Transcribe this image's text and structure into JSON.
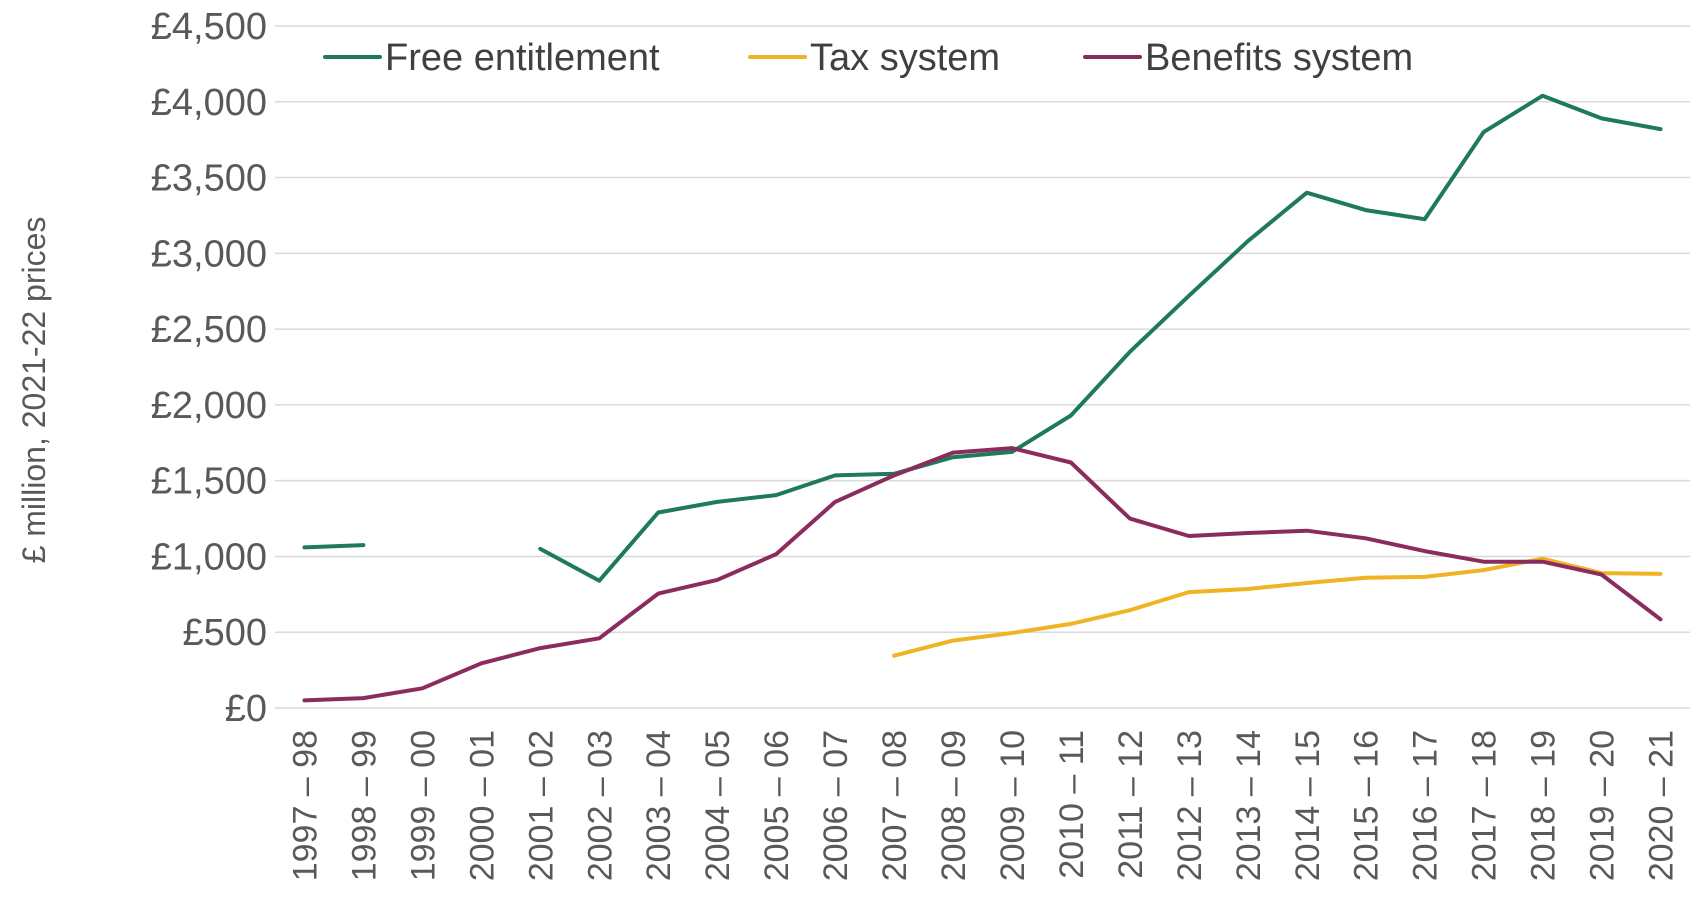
{
  "chart_data": {
    "type": "line",
    "title": "",
    "xlabel": "",
    "ylabel": "£ million, 2021-22 prices",
    "ylim": [
      0,
      4500
    ],
    "yticks": [
      "£0",
      "£500",
      "£1,000",
      "£1,500",
      "£2,000",
      "£2,500",
      "£3,000",
      "£3,500",
      "£4,000",
      "£4,500"
    ],
    "ytick_values": [
      0,
      500,
      1000,
      1500,
      2000,
      2500,
      3000,
      3500,
      4000,
      4500
    ],
    "grid": true,
    "legend_position": "top",
    "categories": [
      "1997 – 98",
      "1998 – 99",
      "1999 – 00",
      "2000 – 01",
      "2001 – 02",
      "2002 – 03",
      "2003 – 04",
      "2004 – 05",
      "2005 – 06",
      "2006 – 07",
      "2007 – 08",
      "2008 – 09",
      "2009 – 10",
      "2010 – 11",
      "2011 – 12",
      "2012 – 13",
      "2013 – 14",
      "2014 – 15",
      "2015 – 16",
      "2016 – 17",
      "2017 – 18",
      "2018 – 19",
      "2019 – 20",
      "2020 – 21"
    ],
    "series": [
      {
        "name": "Free entitlement",
        "color": "#1f7a5a",
        "values": [
          1060,
          1075,
          null,
          null,
          1050,
          840,
          1290,
          1360,
          1405,
          1535,
          1545,
          1655,
          1690,
          1930,
          2350,
          2720,
          3080,
          3400,
          3285,
          3225,
          3800,
          4040,
          3890,
          3820
        ]
      },
      {
        "name": "Tax system",
        "color": "#f0b323",
        "values": [
          null,
          null,
          null,
          null,
          null,
          null,
          null,
          null,
          null,
          null,
          345,
          445,
          495,
          555,
          645,
          765,
          785,
          825,
          860,
          865,
          910,
          985,
          890,
          885
        ]
      },
      {
        "name": "Benefits system",
        "color": "#8b2c5e",
        "values": [
          50,
          65,
          130,
          295,
          395,
          460,
          755,
          845,
          1015,
          1360,
          1535,
          1685,
          1715,
          1620,
          1250,
          1135,
          1155,
          1170,
          1120,
          1035,
          965,
          965,
          880,
          585
        ]
      }
    ]
  }
}
